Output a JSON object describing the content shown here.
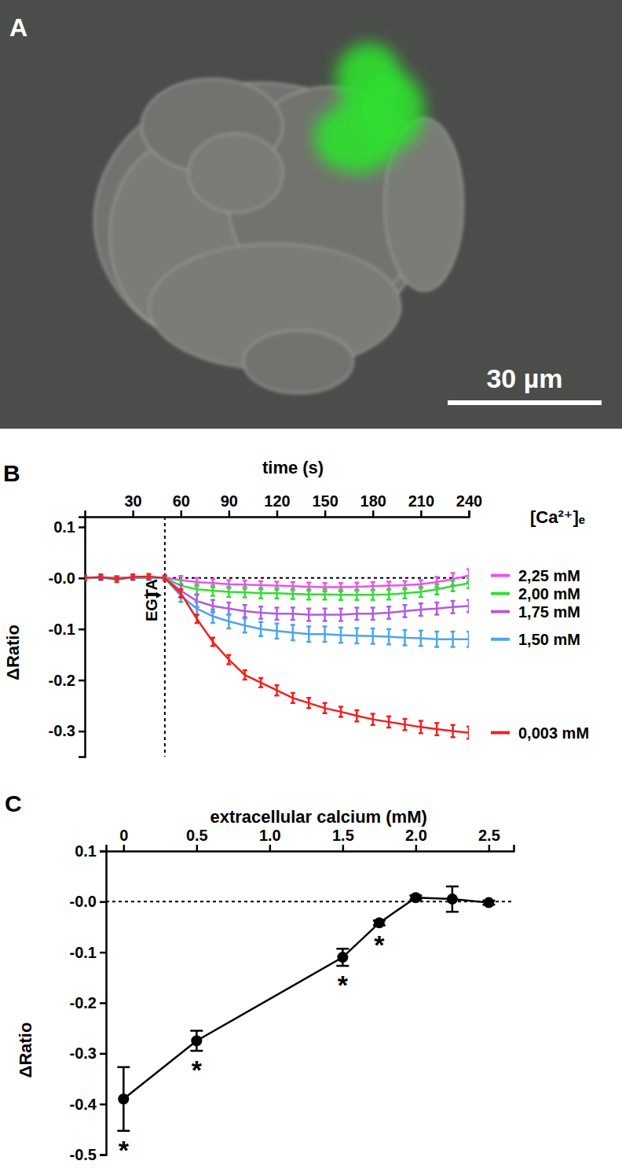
{
  "image_panel": {
    "panel_label": "A",
    "scale_bar_label": "30 µm"
  },
  "chart_data": [
    {
      "type": "line",
      "panel_label": "B",
      "x_label": "time (s)",
      "y_label": "ΔRatio",
      "legend_title": "[Ca²⁺]ₑ",
      "legend": "right",
      "x": [
        0,
        10,
        20,
        30,
        40,
        50,
        60,
        70,
        80,
        90,
        100,
        110,
        120,
        130,
        140,
        150,
        160,
        170,
        180,
        190,
        200,
        210,
        220,
        230,
        240
      ],
      "xlim": [
        0,
        240
      ],
      "xticks": [
        30,
        60,
        90,
        120,
        150,
        180,
        210,
        240
      ],
      "ylim": [
        -0.35,
        0.12
      ],
      "yticks": [
        0.1,
        {
          "value": 0,
          "label": "-0.0"
        },
        -0.1,
        -0.2,
        -0.3
      ],
      "hlines": [
        0
      ],
      "annotations": [
        {
          "text": "EGTA",
          "x": 50
        }
      ],
      "series": [
        {
          "name": "2,25 mM",
          "color": "#f050f0",
          "values": [
            0,
            0,
            0,
            0,
            0,
            0,
            -0.004,
            -0.008,
            -0.01,
            -0.012,
            -0.013,
            -0.014,
            -0.015,
            -0.016,
            -0.017,
            -0.018,
            -0.018,
            -0.017,
            -0.016,
            -0.015,
            -0.014,
            -0.012,
            -0.008,
            -0.002,
            0.005
          ],
          "errors": [
            0.003,
            0.003,
            0.003,
            0.003,
            0.003,
            0.003,
            0.008,
            0.008,
            0.008,
            0.008,
            0.008,
            0.008,
            0.008,
            0.008,
            0.008,
            0.008,
            0.008,
            0.008,
            0.008,
            0.008,
            0.008,
            0.008,
            0.01,
            0.012,
            0.012
          ]
        },
        {
          "name": "2,00 mM",
          "color": "#33dd33",
          "values": [
            0,
            0,
            0,
            0,
            0,
            0,
            -0.015,
            -0.022,
            -0.025,
            -0.027,
            -0.028,
            -0.03,
            -0.03,
            -0.031,
            -0.032,
            -0.032,
            -0.033,
            -0.033,
            -0.033,
            -0.032,
            -0.03,
            -0.027,
            -0.022,
            -0.016,
            -0.01
          ],
          "errors": [
            0.003,
            0.003,
            0.003,
            0.003,
            0.003,
            0.003,
            0.01,
            0.01,
            0.01,
            0.01,
            0.01,
            0.01,
            0.01,
            0.01,
            0.01,
            0.01,
            0.01,
            0.01,
            0.01,
            0.01,
            0.01,
            0.01,
            0.01,
            0.01,
            0.01
          ]
        },
        {
          "name": "1,75 mM",
          "color": "#b05ce0",
          "values": [
            0,
            0,
            0,
            0,
            0,
            0,
            -0.025,
            -0.045,
            -0.055,
            -0.06,
            -0.065,
            -0.068,
            -0.07,
            -0.07,
            -0.072,
            -0.072,
            -0.072,
            -0.07,
            -0.07,
            -0.068,
            -0.065,
            -0.062,
            -0.06,
            -0.057,
            -0.055
          ],
          "errors": [
            0.003,
            0.003,
            0.003,
            0.003,
            0.003,
            0.003,
            0.012,
            0.012,
            0.012,
            0.012,
            0.012,
            0.012,
            0.012,
            0.012,
            0.012,
            0.012,
            0.012,
            0.012,
            0.012,
            0.012,
            0.012,
            0.012,
            0.012,
            0.012,
            0.012
          ]
        },
        {
          "name": "1,50 mM",
          "color": "#4da6e6",
          "values": [
            0,
            0,
            0,
            0,
            0,
            0,
            -0.035,
            -0.06,
            -0.075,
            -0.085,
            -0.093,
            -0.1,
            -0.104,
            -0.107,
            -0.11,
            -0.11,
            -0.112,
            -0.113,
            -0.114,
            -0.115,
            -0.117,
            -0.118,
            -0.12,
            -0.12,
            -0.12
          ],
          "errors": [
            0.004,
            0.004,
            0.004,
            0.004,
            0.004,
            0.004,
            0.012,
            0.013,
            0.013,
            0.014,
            0.014,
            0.014,
            0.015,
            0.015,
            0.015,
            0.015,
            0.015,
            0.015,
            0.015,
            0.015,
            0.015,
            0.015,
            0.015,
            0.015,
            0.015
          ]
        },
        {
          "name": "0,003 mM",
          "color": "#ee2222",
          "values": [
            0,
            0.002,
            -0.003,
            0.002,
            0.003,
            0,
            -0.03,
            -0.08,
            -0.125,
            -0.16,
            -0.19,
            -0.205,
            -0.22,
            -0.235,
            -0.245,
            -0.255,
            -0.262,
            -0.27,
            -0.277,
            -0.282,
            -0.287,
            -0.292,
            -0.296,
            -0.3,
            -0.303
          ],
          "errors": [
            0.005,
            0.005,
            0.005,
            0.005,
            0.005,
            0.005,
            0.008,
            0.008,
            0.008,
            0.009,
            0.009,
            0.009,
            0.01,
            0.01,
            0.01,
            0.01,
            0.01,
            0.011,
            0.011,
            0.011,
            0.011,
            0.012,
            0.012,
            0.012,
            0.012
          ]
        }
      ]
    },
    {
      "type": "line",
      "panel_label": "C",
      "x_label": "extracellular calcium (mM)",
      "y_label": "ΔRatio",
      "x": [
        0,
        0.5,
        1.5,
        1.75,
        2.0,
        2.25,
        2.5
      ],
      "xlim": [
        -0.12,
        2.67
      ],
      "xticks": [
        0,
        0.5,
        {
          "value": 1,
          "label": "1.0"
        },
        1.5,
        {
          "value": 2,
          "label": "2.0"
        },
        2.5
      ],
      "ylim": [
        -0.5,
        0.1
      ],
      "yticks": [
        0.1,
        {
          "value": 0,
          "label": "-0.0"
        },
        -0.1,
        -0.2,
        -0.3,
        -0.4,
        -0.5
      ],
      "hlines": [
        0
      ],
      "series": [
        {
          "color": "#000000",
          "marker": "circle",
          "values": [
            -0.39,
            -0.275,
            -0.11,
            -0.042,
            0.008,
            0.005,
            -0.002
          ],
          "errors": [
            0.063,
            0.02,
            0.017,
            0.005,
            0.004,
            0.025,
            0.004
          ],
          "significance": [
            "*",
            "*",
            "*",
            "*",
            null,
            null,
            null
          ]
        }
      ]
    }
  ]
}
